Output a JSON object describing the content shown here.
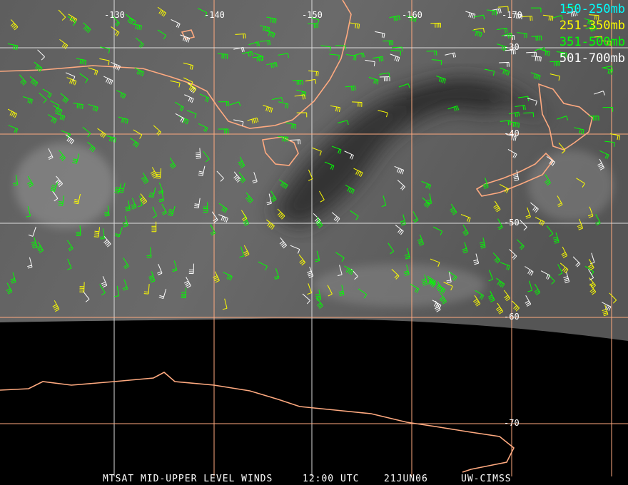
{
  "title": "MTSAT MID-UPPER LEVEL WINDS",
  "caption": {
    "product": "MTSAT MID-UPPER LEVEL WINDS",
    "time": "12:00 UTC",
    "date": "21JUN06",
    "source": "UW-CIMSS"
  },
  "legend": [
    {
      "label": "150-250mb",
      "color": "#00ffff"
    },
    {
      "label": "251-350mb",
      "color": "#ffff00"
    },
    {
      "label": "351-500mb",
      "color": "#00ff00"
    },
    {
      "label": "501-700mb",
      "color": "#ffffff"
    }
  ],
  "longitude_labels": [
    "-130",
    "-140",
    "-150",
    "-160",
    "-170"
  ],
  "latitude_labels": [
    "-30",
    "-40",
    "-50",
    "-60",
    "-70"
  ],
  "colors": {
    "coastline": "#ffaa80",
    "grid_orange": "#ffaa80",
    "grid_white": "#dddddd"
  }
}
